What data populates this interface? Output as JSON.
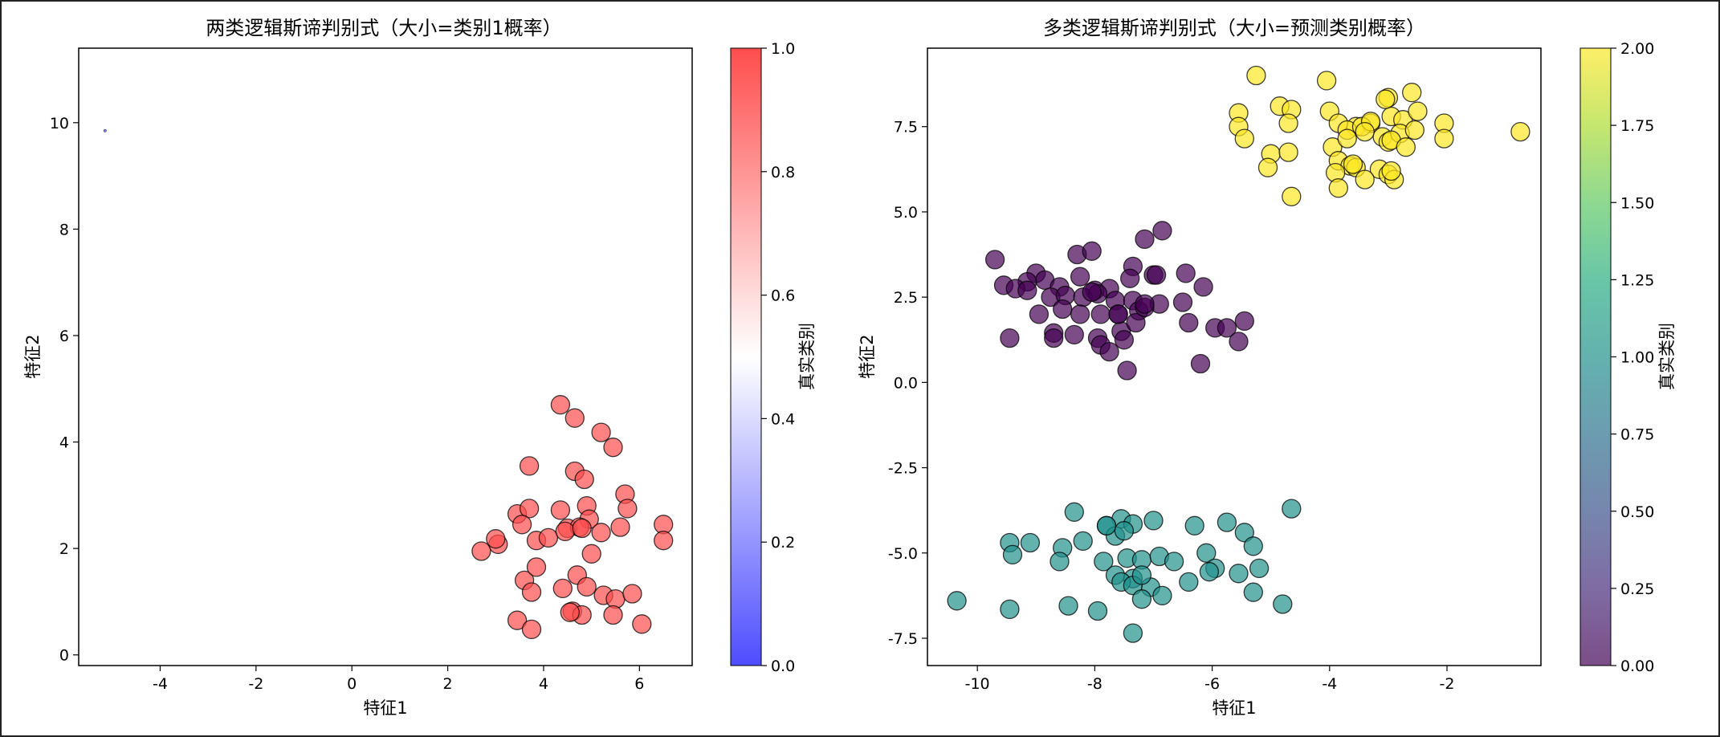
{
  "chart_data": [
    {
      "type": "scatter",
      "title": "两类逻辑斯谛判别式（大小=类别1概率）",
      "xlabel": "特征1",
      "ylabel": "特征2",
      "xlim": [
        -5.7,
        7.1
      ],
      "ylim": [
        -0.2,
        11.4
      ],
      "xticks": [
        -4,
        -2,
        0,
        2,
        4,
        6
      ],
      "yticks": [
        0,
        2,
        4,
        6,
        8,
        10
      ],
      "grid": false,
      "colorbar": {
        "label": "真实类别",
        "colormap": "bwr",
        "range": [
          0.0,
          1.0
        ],
        "ticks": [
          "0.0",
          "0.2",
          "0.4",
          "0.6",
          "0.8",
          "1.0"
        ],
        "low_color": "#4d4dff",
        "mid_color": "#ffffff",
        "high_color": "#ff4d4d"
      },
      "series": [
        {
          "class": 0,
          "color": "#4d4dff",
          "marker_scale": 0.02,
          "x": [
            -5.15
          ],
          "y": [
            9.85
          ]
        },
        {
          "class": 1,
          "color": "#ff4d4d",
          "marker_scale": 1.0,
          "x": [
            4.35,
            4.65,
            5.2,
            5.45,
            3.7,
            4.65,
            4.85,
            5.7,
            3.45,
            3.7,
            4.35,
            4.9,
            5.75,
            3.55,
            4.5,
            4.95,
            5.6,
            6.5,
            3.85,
            4.1,
            4.75,
            5.2,
            3.05,
            2.7,
            3.6,
            5.0,
            3.85,
            4.7,
            3.75,
            4.4,
            4.9,
            5.25,
            5.5,
            5.85,
            4.6,
            4.8,
            5.45,
            3.45,
            3.75,
            6.05,
            6.5,
            3.0,
            4.45,
            4.8,
            4.55
          ],
          "y": [
            4.7,
            4.45,
            4.18,
            3.9,
            3.55,
            3.45,
            3.3,
            3.02,
            2.65,
            2.75,
            2.72,
            2.8,
            2.75,
            2.45,
            2.38,
            2.55,
            2.4,
            2.45,
            2.15,
            2.2,
            2.4,
            2.3,
            2.08,
            1.95,
            1.4,
            1.9,
            1.65,
            1.5,
            1.18,
            1.25,
            1.28,
            1.12,
            1.05,
            1.15,
            0.82,
            0.75,
            0.75,
            0.65,
            0.48,
            0.58,
            2.15,
            2.18,
            2.32,
            2.38,
            0.8
          ]
        }
      ]
    },
    {
      "type": "scatter",
      "title": "多类逻辑斯谛判别式（大小=预测类别概率）",
      "xlabel": "特征1",
      "ylabel": "特征2",
      "xlim": [
        -10.85,
        -0.4
      ],
      "ylim": [
        -8.3,
        9.8
      ],
      "xticks": [
        -10,
        -8,
        -6,
        -4,
        -2
      ],
      "yticks": [
        -7.5,
        -5.0,
        -2.5,
        0.0,
        2.5,
        5.0,
        7.5
      ],
      "grid": false,
      "colorbar": {
        "label": "真实类别",
        "colormap": "viridis",
        "range": [
          0.0,
          2.0
        ],
        "ticks": [
          "0.00",
          "0.25",
          "0.50",
          "0.75",
          "1.00",
          "1.25",
          "1.50",
          "1.75",
          "2.00"
        ]
      },
      "series": [
        {
          "class": 0,
          "color": "#440154",
          "x": [
            -9.7,
            -9.0,
            -8.85,
            -8.3,
            -8.05,
            -7.35,
            -7.15,
            -6.85,
            -9.55,
            -9.15,
            -9.35,
            -8.6,
            -8.25,
            -8.0,
            -7.75,
            -7.4,
            -7.0,
            -6.45,
            -6.15,
            -9.15,
            -8.75,
            -8.5,
            -8.2,
            -7.95,
            -7.65,
            -7.35,
            -6.9,
            -6.5,
            -8.95,
            -8.55,
            -8.25,
            -7.9,
            -7.6,
            -7.25,
            -6.4,
            -5.95,
            -5.75,
            -5.45,
            -8.7,
            -8.35,
            -7.95,
            -7.55,
            -7.3,
            -7.15,
            -9.45,
            -8.7,
            -7.9,
            -7.75,
            -7.5,
            -6.2,
            -5.55,
            -7.45,
            -7.15,
            -6.95,
            -7.6,
            -8.05
          ],
          "y": [
            3.6,
            3.2,
            3.0,
            3.75,
            3.85,
            3.4,
            4.2,
            4.45,
            2.85,
            2.95,
            2.75,
            2.8,
            3.1,
            2.7,
            2.75,
            3.05,
            3.15,
            3.2,
            2.8,
            2.7,
            2.5,
            2.55,
            2.5,
            2.6,
            2.4,
            2.4,
            2.3,
            2.35,
            2.0,
            2.15,
            2.0,
            2.0,
            2.0,
            2.1,
            1.75,
            1.6,
            1.6,
            1.8,
            1.45,
            1.4,
            1.3,
            1.5,
            1.75,
            2.2,
            1.3,
            1.3,
            1.1,
            0.9,
            1.25,
            0.55,
            1.2,
            0.35,
            2.3,
            3.15,
            2.0,
            2.65
          ]
        },
        {
          "class": 1,
          "color": "#21918c",
          "x": [
            -4.65,
            -8.35,
            -7.55,
            -7.0,
            -5.75,
            -7.8,
            -6.3,
            -5.45,
            -9.45,
            -9.1,
            -8.55,
            -8.2,
            -7.65,
            -7.35,
            -5.3,
            -9.4,
            -8.6,
            -7.85,
            -7.45,
            -7.2,
            -6.9,
            -6.65,
            -6.1,
            -5.95,
            -5.2,
            -7.65,
            -7.35,
            -7.05,
            -6.4,
            -6.05,
            -5.55,
            -7.55,
            -7.35,
            -7.2,
            -6.85,
            -10.35,
            -9.45,
            -8.45,
            -7.95,
            -7.2,
            -5.3,
            -4.8,
            -7.35,
            -7.8,
            -7.5
          ],
          "y": [
            -3.7,
            -3.8,
            -4.0,
            -4.05,
            -4.1,
            -4.2,
            -4.2,
            -4.4,
            -4.7,
            -4.7,
            -4.85,
            -4.65,
            -4.5,
            -4.15,
            -4.8,
            -5.05,
            -5.25,
            -5.25,
            -5.15,
            -5.2,
            -5.1,
            -5.25,
            -5.0,
            -5.45,
            -5.45,
            -5.65,
            -5.75,
            -6.0,
            -5.85,
            -5.55,
            -5.6,
            -5.85,
            -5.95,
            -6.35,
            -6.25,
            -6.4,
            -6.65,
            -6.55,
            -6.7,
            -5.65,
            -6.15,
            -6.5,
            -7.35,
            -4.2,
            -4.35
          ]
        },
        {
          "class": 2,
          "color": "#fde725",
          "x": [
            -5.25,
            -4.05,
            -4.85,
            -4.65,
            -3.0,
            -2.6,
            -5.55,
            -4.7,
            -4.0,
            -3.55,
            -3.3,
            -3.1,
            -2.95,
            -2.75,
            -2.5,
            -5.55,
            -5.45,
            -3.85,
            -3.7,
            -3.45,
            -3.3,
            -3.0,
            -2.8,
            -2.55,
            -2.05,
            -0.75,
            -3.95,
            -3.7,
            -3.4,
            -2.95,
            -2.7,
            -2.05,
            -5.0,
            -4.7,
            -3.85,
            -3.65,
            -3.55,
            -3.15,
            -3.0,
            -3.9,
            -3.6,
            -5.05,
            -4.65,
            -3.85,
            -3.4,
            -2.9,
            -2.95,
            -3.05
          ],
          "y": [
            9.0,
            8.85,
            8.1,
            8.0,
            8.35,
            8.5,
            7.9,
            7.6,
            7.95,
            7.5,
            7.6,
            7.2,
            7.8,
            7.7,
            7.95,
            7.5,
            7.15,
            7.6,
            7.4,
            7.5,
            7.65,
            7.05,
            7.3,
            7.4,
            7.6,
            7.35,
            6.9,
            7.15,
            7.35,
            7.1,
            6.9,
            7.15,
            6.7,
            6.75,
            6.5,
            6.35,
            6.3,
            6.25,
            6.1,
            6.15,
            6.4,
            6.3,
            5.45,
            5.7,
            5.95,
            5.95,
            6.2,
            8.3
          ]
        }
      ]
    }
  ]
}
